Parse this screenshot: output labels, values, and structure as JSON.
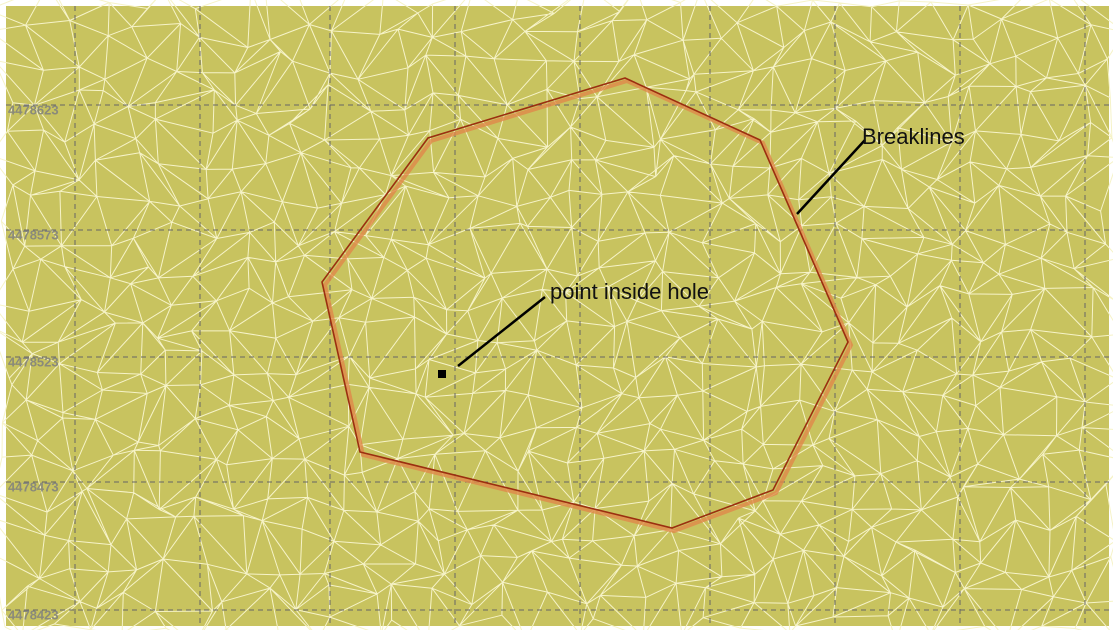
{
  "axis_labels": [
    "4478623",
    "4478573",
    "4478523",
    "4478473",
    "4478423"
  ],
  "annotations": {
    "breaklines": "Breaklines",
    "point": "point  inside hole"
  }
}
